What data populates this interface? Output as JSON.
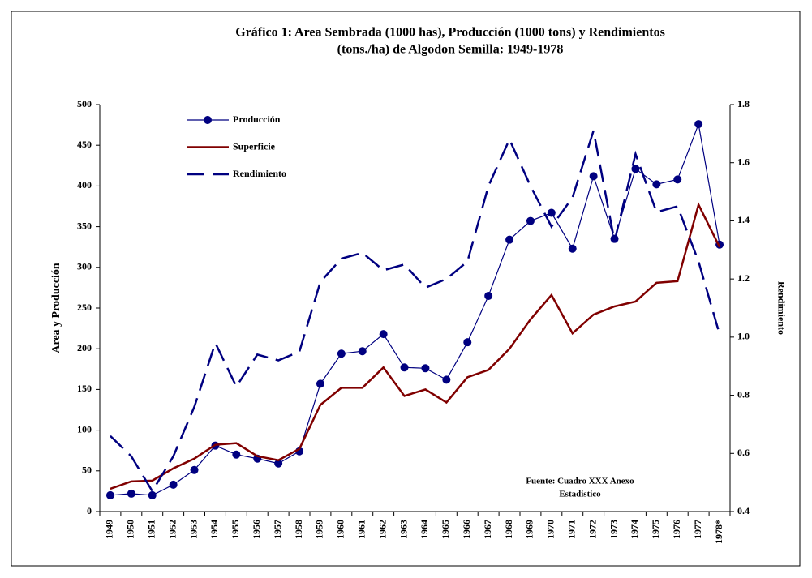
{
  "chart_data": {
    "type": "line",
    "title": [
      "Gráfico 1:  Area Sembrada (1000 has), Producción (1000 tons) y Rendimientos",
      "(tons./ha) de Algodon Semilla: 1949-1978"
    ],
    "ylabel": "Area y Producción",
    "y2label": "Rendimiento",
    "annotation": [
      "Fuente: Cuadro XXX  Anexo",
      "Estadistico"
    ],
    "categories": [
      "1949",
      "1950",
      "1951",
      "1952",
      "1953",
      "1954",
      "1955",
      "1956",
      "1957",
      "1958",
      "1959",
      "1960",
      "1961",
      "1962",
      "1963",
      "1964",
      "1965",
      "1966",
      "1967",
      "1968",
      "1969",
      "1970",
      "1971",
      "1972",
      "1973",
      "1974",
      "1975",
      "1976",
      "1977",
      "1978*"
    ],
    "series": [
      {
        "name": "Producción",
        "color": "#000080",
        "marker": "circle",
        "dash": false,
        "values": [
          20,
          22,
          20,
          33,
          51,
          81,
          70,
          65,
          59,
          74,
          157,
          194,
          197,
          218,
          177,
          176,
          162,
          208,
          265,
          334,
          357,
          367,
          323,
          412,
          335,
          421,
          402,
          408,
          476,
          328
        ]
      },
      {
        "name": "Superficie",
        "color": "#800000",
        "marker": "none",
        "dash": false,
        "values": [
          28,
          37,
          38,
          53,
          65,
          82,
          84,
          68,
          63,
          77,
          131,
          152,
          152,
          177,
          142,
          150,
          134,
          165,
          174,
          200,
          236,
          266,
          219,
          242,
          252,
          258,
          281,
          283,
          377,
          325
        ]
      },
      {
        "name": "Rendimiento",
        "color": "#000080",
        "marker": "none",
        "dash": true,
        "axis": "y2",
        "values": [
          0.66,
          0.59,
          0.47,
          0.59,
          0.76,
          0.98,
          0.83,
          0.94,
          0.92,
          0.95,
          1.19,
          1.27,
          1.29,
          1.23,
          1.25,
          1.17,
          1.2,
          1.26,
          1.52,
          1.68,
          1.52,
          1.38,
          1.48,
          1.71,
          1.33,
          1.63,
          1.43,
          1.45,
          1.26,
          1.01
        ]
      }
    ],
    "ylim": [
      0,
      500
    ],
    "yticks": [
      0,
      50,
      100,
      150,
      200,
      250,
      300,
      350,
      400,
      450,
      500
    ],
    "y2lim": [
      0.4,
      1.8
    ],
    "y2ticks": [
      0.4,
      0.6,
      0.8,
      {
        "value": 1,
        "label": "1.0"
      },
      1.2,
      1.4,
      1.6,
      1.8
    ],
    "grid": false,
    "legend": "upper left"
  }
}
